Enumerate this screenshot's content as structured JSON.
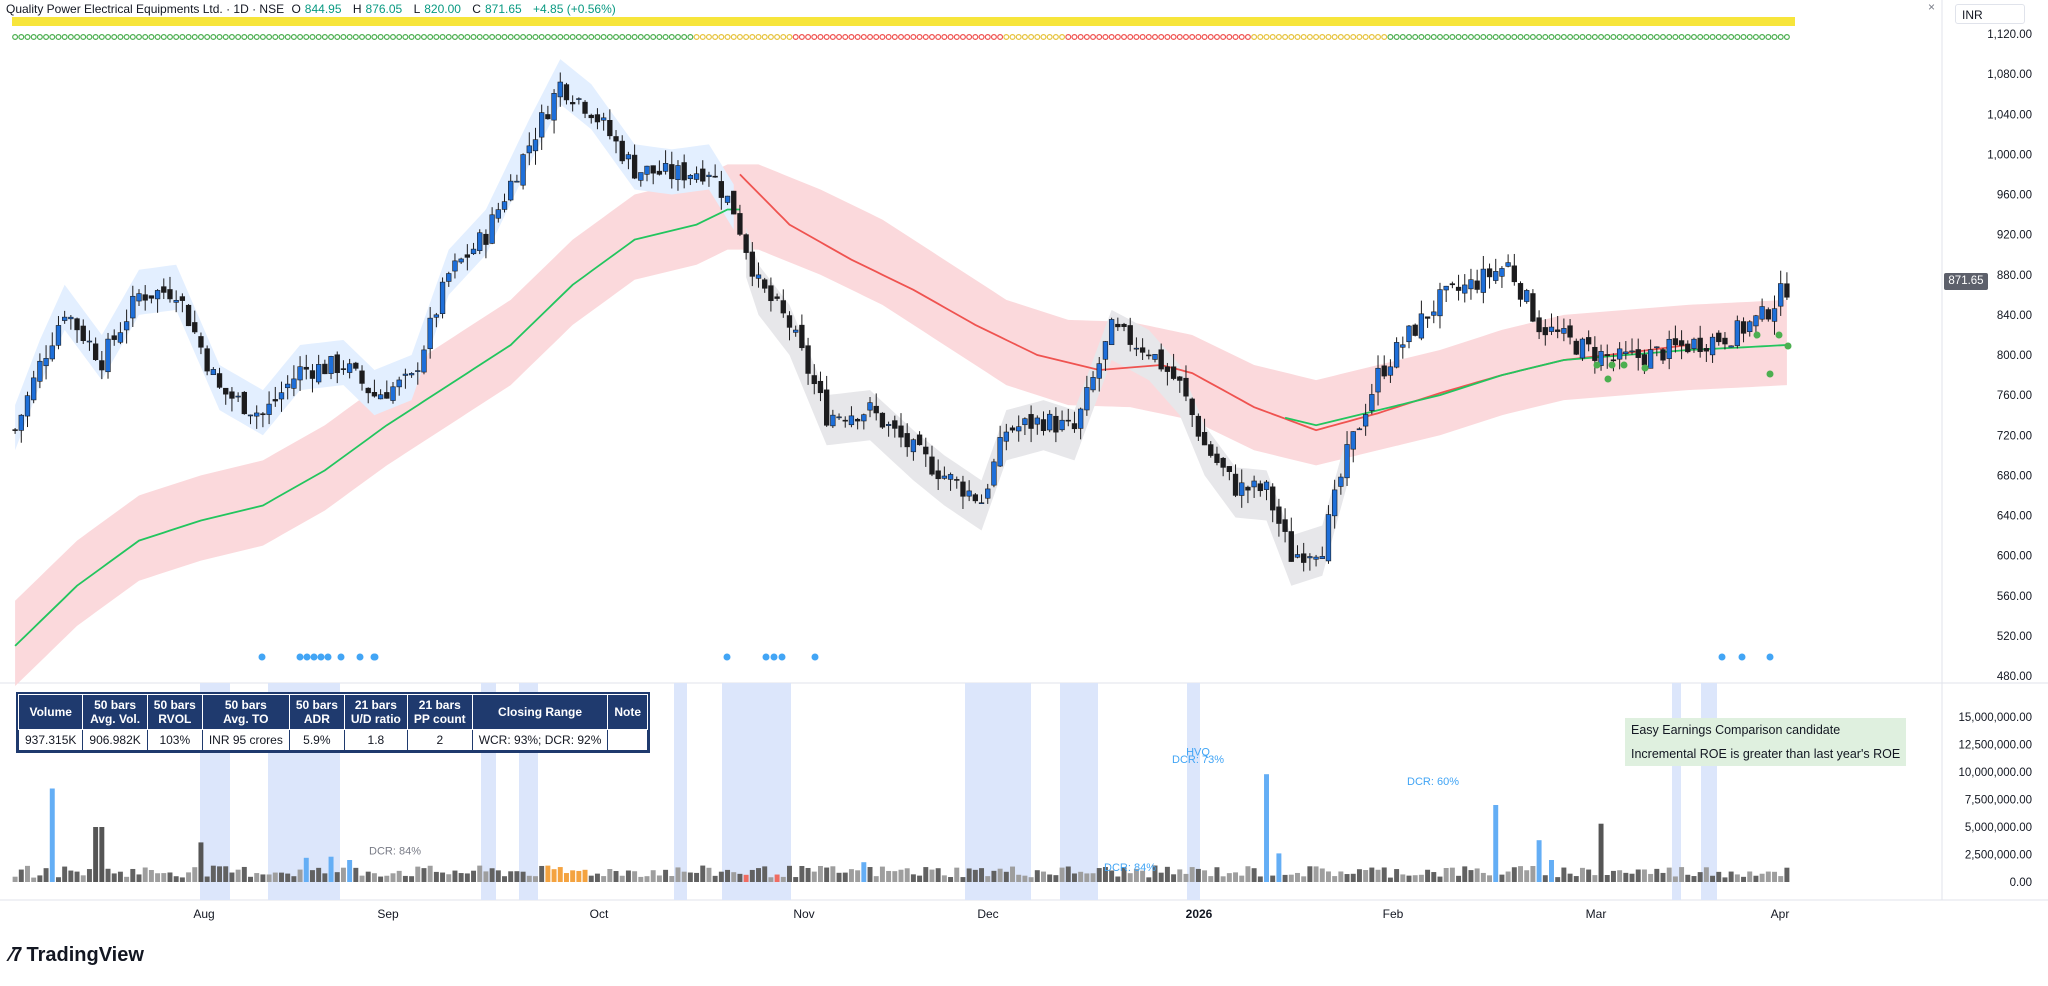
{
  "legend": {
    "title": "Quality Power Electrical Equipments Ltd. · 1D · NSE",
    "o_label": "O",
    "o": "844.95",
    "h_label": "H",
    "h": "876.05",
    "l_label": "L",
    "l": "820.00",
    "c_label": "C",
    "c": "871.65",
    "change": "+4.85 (+0.56%)"
  },
  "currency": "INR",
  "close_icon": "close-icon",
  "last_price_label": "871.65",
  "colors": {
    "up": "#1e6fd9",
    "down": "#1c1c1e",
    "ema_green": "#22c55e",
    "ma_red": "#ef5350",
    "band_pink": "#fbd9dc",
    "band_blue": "#e3efff",
    "band_gray": "#e7e7ea",
    "dot_blue": "#42a5f5",
    "highlight_blue": "#dce6fb"
  },
  "chart_data": {
    "type": "candlestick",
    "title": "Quality Power Electrical Equipments Ltd. · 1D · NSE",
    "x_labels": [
      "Aug",
      "Sep",
      "Oct",
      "Nov",
      "Dec",
      "2026",
      "Feb",
      "Mar",
      "Apr"
    ],
    "y_ticks": [
      "1,120.00",
      "1,080.00",
      "1,040.00",
      "1,000.00",
      "960.00",
      "920.00",
      "880.00",
      "840.00",
      "800.00",
      "760.00",
      "720.00",
      "680.00",
      "640.00",
      "600.00",
      "560.00",
      "520.00",
      "480.00"
    ],
    "ylim": [
      480,
      1120
    ],
    "close_path": [
      [
        0,
        725
      ],
      [
        4,
        790
      ],
      [
        8,
        845
      ],
      [
        14,
        795
      ],
      [
        20,
        860
      ],
      [
        26,
        865
      ],
      [
        33,
        765
      ],
      [
        40,
        740
      ],
      [
        46,
        785
      ],
      [
        53,
        790
      ],
      [
        58,
        760
      ],
      [
        64,
        775
      ],
      [
        70,
        880
      ],
      [
        76,
        920
      ],
      [
        83,
        1010
      ],
      [
        88,
        1070
      ],
      [
        93,
        1045
      ],
      [
        100,
        985
      ],
      [
        106,
        980
      ],
      [
        112,
        985
      ],
      [
        116,
        945
      ],
      [
        120,
        870
      ],
      [
        125,
        830
      ],
      [
        131,
        740
      ],
      [
        138,
        745
      ],
      [
        145,
        705
      ],
      [
        150,
        680
      ],
      [
        156,
        655
      ],
      [
        160,
        725
      ],
      [
        166,
        735
      ],
      [
        171,
        725
      ],
      [
        177,
        825
      ],
      [
        183,
        805
      ],
      [
        188,
        770
      ],
      [
        192,
        710
      ],
      [
        197,
        668
      ],
      [
        202,
        665
      ],
      [
        206,
        600
      ],
      [
        211,
        610
      ],
      [
        215,
        700
      ],
      [
        220,
        780
      ],
      [
        225,
        820
      ],
      [
        230,
        855
      ],
      [
        235,
        870
      ],
      [
        241,
        890
      ],
      [
        246,
        830
      ],
      [
        252,
        810
      ],
      [
        258,
        795
      ],
      [
        264,
        800
      ],
      [
        270,
        810
      ],
      [
        277,
        820
      ],
      [
        282,
        838
      ],
      [
        286,
        868
      ]
    ],
    "ema_green_path": [
      [
        0,
        510
      ],
      [
        10,
        570
      ],
      [
        20,
        615
      ],
      [
        30,
        635
      ],
      [
        40,
        650
      ],
      [
        50,
        685
      ],
      [
        60,
        730
      ],
      [
        70,
        770
      ],
      [
        80,
        810
      ],
      [
        90,
        870
      ],
      [
        100,
        915
      ],
      [
        110,
        930
      ],
      [
        115,
        945
      ],
      [
        120,
        945
      ],
      [
        130,
        920
      ],
      [
        140,
        890
      ],
      [
        150,
        850
      ],
      [
        160,
        810
      ],
      [
        170,
        790
      ],
      [
        180,
        788
      ],
      [
        190,
        775
      ],
      [
        200,
        745
      ],
      [
        210,
        730
      ],
      [
        220,
        745
      ],
      [
        230,
        760
      ],
      [
        240,
        780
      ],
      [
        250,
        795
      ],
      [
        260,
        800
      ],
      [
        270,
        805
      ],
      [
        280,
        808
      ],
      [
        286,
        810
      ]
    ],
    "ma_red_path": [
      [
        117,
        980
      ],
      [
        125,
        930
      ],
      [
        135,
        895
      ],
      [
        145,
        865
      ],
      [
        155,
        830
      ],
      [
        165,
        800
      ],
      [
        175,
        785
      ],
      [
        185,
        790
      ],
      [
        190,
        782
      ],
      [
        200,
        748
      ],
      [
        210,
        725
      ],
      [
        220,
        742
      ],
      [
        230,
        762
      ],
      [
        240,
        780
      ],
      [
        250,
        795
      ],
      [
        260,
        802
      ],
      [
        270,
        810
      ]
    ],
    "volume_axis": [
      "15,000,000.00",
      "12,500,000.00",
      "10,000,000.00",
      "7,500,000.00",
      "5,000,000.00",
      "2,500,000.00",
      "0.00"
    ],
    "volume_ylim": [
      0,
      15000000
    ],
    "volume_spikes": [
      [
        6,
        8500000
      ],
      [
        13,
        5000000
      ],
      [
        14,
        5000000
      ],
      [
        30,
        3600000
      ],
      [
        47,
        2200000
      ],
      [
        51,
        2300000
      ],
      [
        54,
        2000000
      ],
      [
        137,
        1800000
      ],
      [
        202,
        9800000
      ],
      [
        204,
        2600000
      ],
      [
        239,
        7000000
      ],
      [
        246,
        3800000
      ],
      [
        248,
        2000000
      ],
      [
        256,
        5300000
      ]
    ],
    "volume_annotations": [
      {
        "label": "DCR: 84%",
        "x": 55,
        "volume": 2500000
      },
      {
        "label": "HVQ",
        "x": 202,
        "volume": 11500000
      },
      {
        "label": "DCR: 73%",
        "x": 202,
        "volume": 10800000
      },
      {
        "label": "DCR: 60%",
        "x": 239,
        "volume": 8800000
      },
      {
        "label": "DCR: 84%",
        "x": 185,
        "volume": 1000000
      }
    ]
  },
  "table": {
    "headers": [
      "Volume",
      "50 bars\nAvg. Vol.",
      "50 bars\nRVOL",
      "50 bars\nAvg. TO",
      "50 bars\nADR",
      "21 bars\nU/D ratio",
      "21 bars\nPP count",
      "Closing Range",
      "Note"
    ],
    "row": [
      "937.315K",
      "906.982K",
      "103%",
      "INR 95 crores",
      "5.9%",
      "1.8",
      "2",
      "WCR: 93%; DCR: 92%",
      ""
    ]
  },
  "notes": [
    "Easy Earnings Comparison candidate",
    "Incremental ROE is greater than last year's ROE"
  ],
  "brand": "TradingView"
}
